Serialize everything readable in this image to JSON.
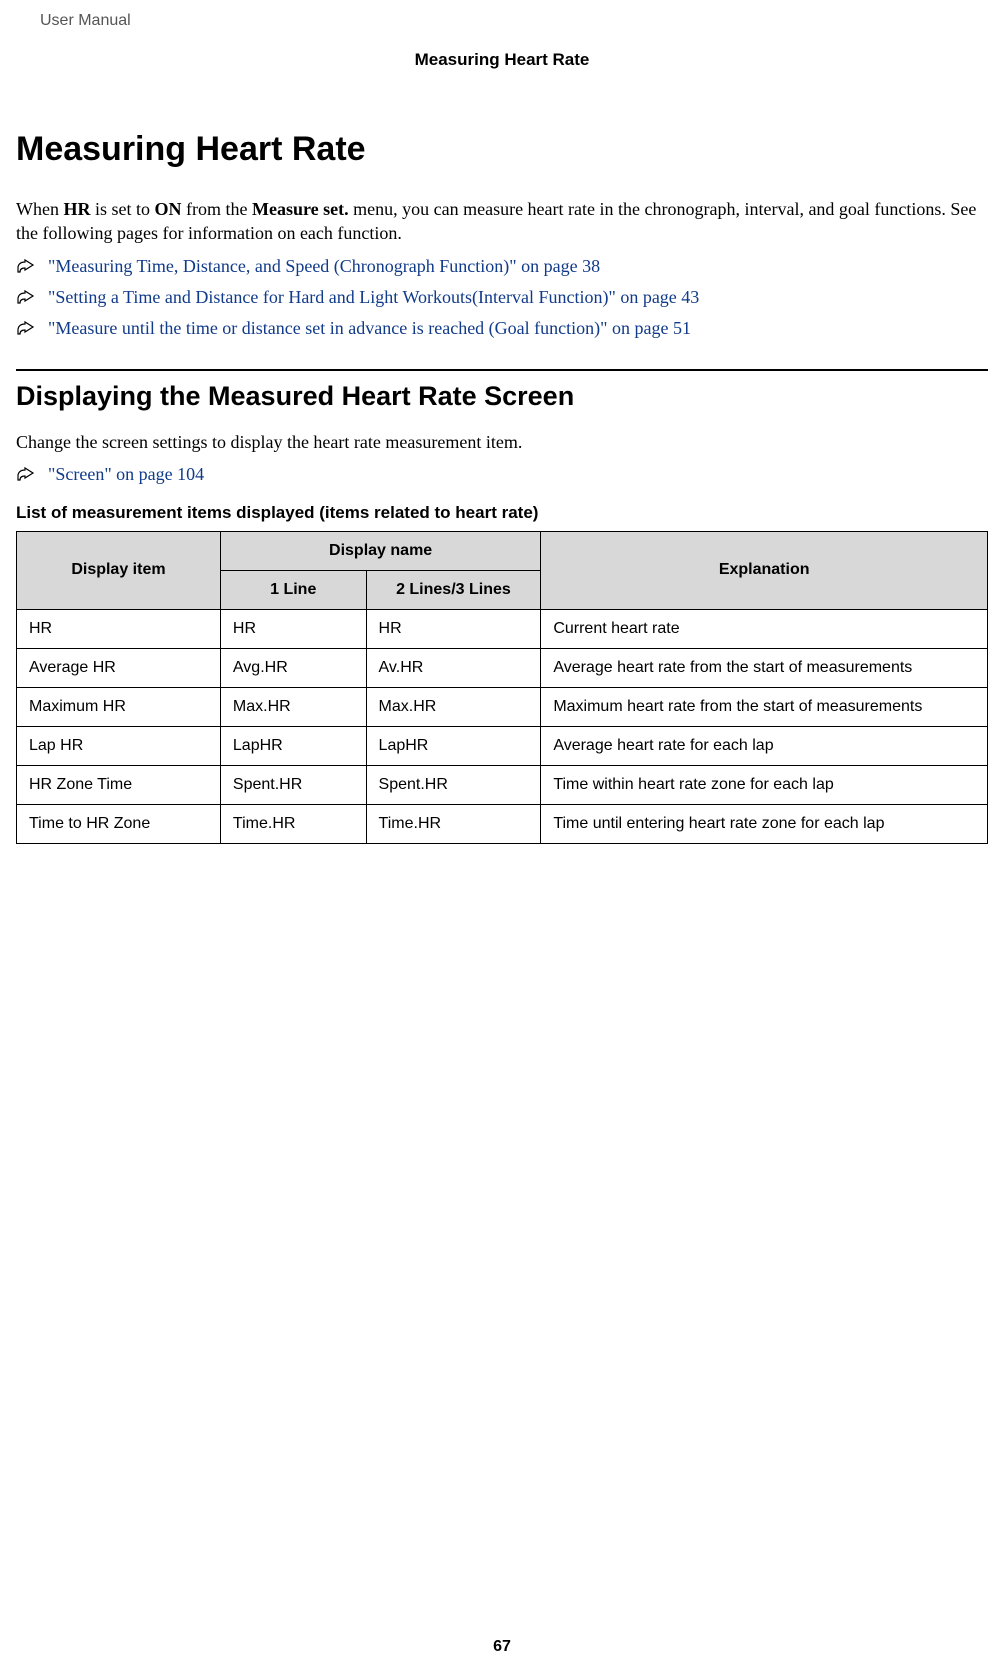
{
  "header": {
    "doc_type": "User Manual",
    "section_label": "Measuring Heart Rate"
  },
  "title": "Measuring Heart Rate",
  "intro": {
    "prefix": "When ",
    "bold1": "HR",
    "mid1": " is set to ",
    "bold2": "ON",
    "mid2": " from the ",
    "bold3": "Measure set.",
    "suffix": " menu, you can measure heart rate in the chronograph, interval, and goal functions. See the following pages for information on each function."
  },
  "refs": [
    "\"Measuring Time, Distance, and Speed (Chronograph Function)\" on page 38",
    "\"Setting a Time and Distance for Hard and Light Workouts(Interval Function)\" on page 43",
    "\"Measure until the time or distance set in advance is reached (Goal function)\" on page 51"
  ],
  "subhead": "Displaying the Measured Heart Rate Screen",
  "subintro": "Change the screen settings to display the heart rate measurement item.",
  "subref": "\"Screen\" on page 104",
  "table": {
    "caption": "List of measurement items displayed (items related to heart rate)",
    "columns": {
      "item": "Display item",
      "name_group": "Display name",
      "line1": "1 Line",
      "line23": "2 Lines/3 Lines",
      "explanation": "Explanation"
    },
    "rows": [
      {
        "item": "HR",
        "line1": "HR",
        "line23": "HR",
        "explanation": "Current heart rate"
      },
      {
        "item": "Average HR",
        "line1": "Avg.HR",
        "line23": "Av.HR",
        "explanation": "Average heart rate from the start of measurements"
      },
      {
        "item": "Maximum HR",
        "line1": "Max.HR",
        "line23": "Max.HR",
        "explanation": "Maximum heart rate from the start of measurements"
      },
      {
        "item": "Lap HR",
        "line1": "LapHR",
        "line23": "LapHR",
        "explanation": "Average heart rate for each lap"
      },
      {
        "item": "HR Zone Time",
        "line1": "Spent.HR",
        "line23": "Spent.HR",
        "explanation": "Time within heart rate zone for each lap"
      },
      {
        "item": "Time to HR Zone",
        "line1": "Time.HR",
        "line23": "Time.HR",
        "explanation": "Time until entering heart rate zone for each lap"
      }
    ],
    "header_bg": "#d8d8d8",
    "border_color": "#000000"
  },
  "link_color": "#103a8a",
  "page_number": "67"
}
